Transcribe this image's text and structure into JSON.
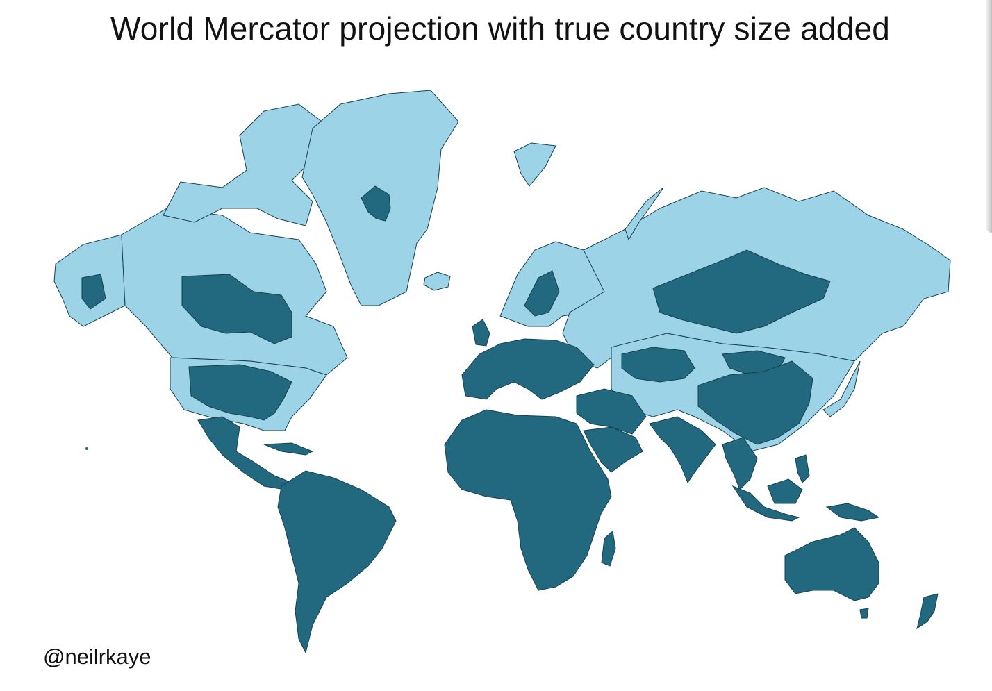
{
  "title": "World Mercator projection with true country size added",
  "credit": "@neilrkaye",
  "legend": {
    "light": "",
    "dark": ""
  },
  "colors": {
    "mercator_fill": "#9cd3e6",
    "true_size_fill": "#22697f",
    "border_stroke": "#16404f",
    "background": "#ffffff"
  },
  "map_data": {
    "projection": "Mercator",
    "regions": [
      "alaska",
      "canada",
      "canadian-arctic-islands",
      "greenland",
      "united-states",
      "central-america",
      "caribbean",
      "south-america",
      "iceland",
      "svalbard",
      "scandinavia",
      "europe",
      "russia",
      "central-asia",
      "mongolia",
      "china",
      "japan",
      "africa",
      "madagascar",
      "arabian-peninsula",
      "india",
      "southeast-asia",
      "indonesia",
      "papua-new-guinea",
      "australia",
      "new-zealand"
    ]
  }
}
